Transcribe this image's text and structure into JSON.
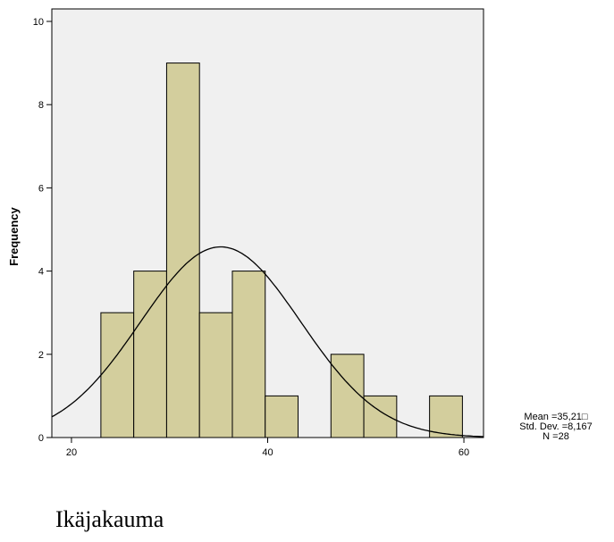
{
  "chart_data": {
    "type": "bar",
    "subtype": "histogram",
    "bins": [
      {
        "x0": 23,
        "x1": 26.35,
        "count": 3
      },
      {
        "x0": 26.35,
        "x1": 29.7,
        "count": 4
      },
      {
        "x0": 29.7,
        "x1": 33.05,
        "count": 9
      },
      {
        "x0": 33.05,
        "x1": 36.4,
        "count": 3
      },
      {
        "x0": 36.4,
        "x1": 39.75,
        "count": 4
      },
      {
        "x0": 39.75,
        "x1": 43.1,
        "count": 1
      },
      {
        "x0": 43.1,
        "x1": 46.45,
        "count": 0
      },
      {
        "x0": 46.45,
        "x1": 49.8,
        "count": 2
      },
      {
        "x0": 49.8,
        "x1": 53.15,
        "count": 1
      },
      {
        "x0": 53.15,
        "x1": 56.5,
        "count": 0
      },
      {
        "x0": 56.5,
        "x1": 59.85,
        "count": 1
      }
    ],
    "normal_curve": {
      "mean": 35.21,
      "sd": 8.167,
      "n": 28
    },
    "xlim": [
      18,
      62
    ],
    "ylim": [
      0,
      10.3
    ],
    "xticks": [
      "20",
      "40",
      "60"
    ],
    "yticks": [
      "0",
      "2",
      "4",
      "6",
      "8",
      "10"
    ],
    "ylabel": "Frequency",
    "xlabel": "",
    "grid": false,
    "stats_labels": [
      "Mean =35,21□",
      "Std. Dev. =8,167",
      "N =28"
    ],
    "colors": {
      "bar_fill": "#d3ce9d",
      "plot_bg": "#f0f0f0",
      "curve": "#000000"
    }
  },
  "caption": "Ikäjakauma"
}
